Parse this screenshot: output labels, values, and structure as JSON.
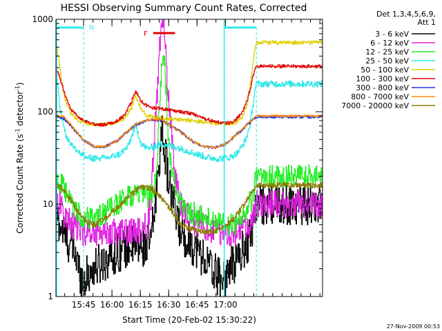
{
  "chart_data": {
    "type": "line",
    "title": "HESSI Observing Summary Count Rates, Corrected",
    "xlabel": "Start Time (20-Feb-02 15:30:22)",
    "ylabel_parts": [
      "Corrected Count Rate (s",
      "-1",
      " detector",
      "-1",
      ")"
    ],
    "yscale": "log",
    "ylim": [
      1,
      1000
    ],
    "xlim_min": [
      0,
      141
    ],
    "x_units": "minutes after 15:30:22",
    "x_ticks": [
      {
        "minute": 14.63,
        "label": "15:45"
      },
      {
        "minute": 29.63,
        "label": "16:00"
      },
      {
        "minute": 44.63,
        "label": "16:15"
      },
      {
        "minute": 59.63,
        "label": "16:30"
      },
      {
        "minute": 74.63,
        "label": "16:45"
      },
      {
        "minute": 89.63,
        "label": "17:00"
      }
    ],
    "y_ticks": [
      {
        "value": 1,
        "label": "1"
      },
      {
        "value": 10,
        "label": "10"
      },
      {
        "value": 100,
        "label": "100"
      },
      {
        "value": 1000,
        "label": "1000"
      }
    ],
    "legend_header": [
      "Det 1,3,4,5,6,9,",
      "Att 1"
    ],
    "legend_position": "right",
    "series": [
      {
        "name": "3 - 6 keV",
        "color": "#000000",
        "noise": 0.45,
        "points": [
          [
            0,
            8
          ],
          [
            2,
            6
          ],
          [
            6,
            4
          ],
          [
            10,
            3
          ],
          [
            12,
            2
          ],
          [
            14,
            1.5
          ],
          [
            20,
            2
          ],
          [
            26,
            2.5
          ],
          [
            32,
            3
          ],
          [
            38,
            3.5
          ],
          [
            46,
            3.5
          ],
          [
            50,
            4
          ],
          [
            52,
            8
          ],
          [
            54,
            25
          ],
          [
            55,
            40
          ],
          [
            56,
            55
          ],
          [
            57,
            50
          ],
          [
            58,
            30
          ],
          [
            60,
            15
          ],
          [
            63,
            8
          ],
          [
            66,
            5
          ],
          [
            70,
            4
          ],
          [
            76,
            3
          ],
          [
            82,
            2
          ],
          [
            88,
            1.5
          ],
          [
            92,
            2
          ],
          [
            98,
            3
          ],
          [
            102,
            4
          ],
          [
            104,
            6
          ],
          [
            105,
            8
          ],
          [
            106,
            10
          ]
        ]
      },
      {
        "name": "6 - 12 keV",
        "color": "#e020e0",
        "noise": 0.3,
        "points": [
          [
            0,
            12
          ],
          [
            2,
            10
          ],
          [
            4,
            8
          ],
          [
            8,
            6
          ],
          [
            14,
            5
          ],
          [
            20,
            5
          ],
          [
            28,
            5
          ],
          [
            38,
            5
          ],
          [
            44,
            5
          ],
          [
            48,
            6
          ],
          [
            50,
            10
          ],
          [
            52,
            50
          ],
          [
            54,
            250
          ],
          [
            55,
            600
          ],
          [
            56,
            800
          ],
          [
            57,
            750
          ],
          [
            58,
            400
          ],
          [
            59,
            200
          ],
          [
            61,
            60
          ],
          [
            63,
            20
          ],
          [
            66,
            10
          ],
          [
            70,
            7
          ],
          [
            76,
            6
          ],
          [
            84,
            5
          ],
          [
            90,
            5
          ],
          [
            96,
            5
          ],
          [
            102,
            6
          ],
          [
            104,
            7
          ],
          [
            105,
            8
          ],
          [
            106,
            10
          ]
        ]
      },
      {
        "name": "12 - 25 keV",
        "color": "#20ee20",
        "noise": 0.25,
        "points": [
          [
            0,
            18
          ],
          [
            3,
            16
          ],
          [
            8,
            10
          ],
          [
            14,
            7
          ],
          [
            20,
            7
          ],
          [
            26,
            8
          ],
          [
            32,
            10
          ],
          [
            38,
            12
          ],
          [
            42,
            13
          ],
          [
            46,
            12
          ],
          [
            50,
            12
          ],
          [
            52,
            15
          ],
          [
            53,
            20
          ],
          [
            54,
            60
          ],
          [
            55,
            150
          ],
          [
            56,
            350
          ],
          [
            57,
            420
          ],
          [
            58,
            200
          ],
          [
            59,
            60
          ],
          [
            61,
            25
          ],
          [
            63,
            15
          ],
          [
            66,
            10
          ],
          [
            72,
            8
          ],
          [
            80,
            7
          ],
          [
            88,
            6
          ],
          [
            94,
            6
          ],
          [
            100,
            8
          ],
          [
            104,
            12
          ],
          [
            106,
            20
          ]
        ]
      },
      {
        "name": "25 - 50 keV",
        "color": "#30e8e8",
        "noise": 0.07,
        "points": [
          [
            0,
            250
          ],
          [
            1,
            180
          ],
          [
            2,
            110
          ],
          [
            4,
            70
          ],
          [
            6,
            50
          ],
          [
            10,
            40
          ],
          [
            16,
            32
          ],
          [
            22,
            31
          ],
          [
            28,
            32
          ],
          [
            34,
            35
          ],
          [
            38,
            42
          ],
          [
            41,
            62
          ],
          [
            42,
            70
          ],
          [
            43,
            62
          ],
          [
            45,
            45
          ],
          [
            48,
            40
          ],
          [
            52,
            42
          ],
          [
            56,
            45
          ],
          [
            60,
            43
          ],
          [
            66,
            40
          ],
          [
            74,
            35
          ],
          [
            80,
            32
          ],
          [
            86,
            31
          ],
          [
            92,
            32
          ],
          [
            96,
            36
          ],
          [
            100,
            48
          ],
          [
            102,
            65
          ],
          [
            104,
            110
          ],
          [
            105,
            170
          ],
          [
            106,
            200
          ]
        ]
      },
      {
        "name": "50 - 100 keV",
        "color": "#e0d000",
        "noise": 0.04,
        "points": [
          [
            0,
            520
          ],
          [
            1,
            430
          ],
          [
            2,
            300
          ],
          [
            3,
            200
          ],
          [
            5,
            130
          ],
          [
            8,
            95
          ],
          [
            12,
            80
          ],
          [
            18,
            72
          ],
          [
            24,
            72
          ],
          [
            30,
            75
          ],
          [
            36,
            85
          ],
          [
            40,
            110
          ],
          [
            41,
            135
          ],
          [
            42,
            150
          ],
          [
            43,
            135
          ],
          [
            45,
            105
          ],
          [
            48,
            90
          ],
          [
            52,
            88
          ],
          [
            56,
            85
          ],
          [
            60,
            83
          ],
          [
            66,
            82
          ],
          [
            72,
            80
          ],
          [
            80,
            76
          ],
          [
            88,
            74
          ],
          [
            94,
            75
          ],
          [
            98,
            85
          ],
          [
            101,
            120
          ],
          [
            103,
            220
          ],
          [
            104,
            330
          ],
          [
            105,
            470
          ],
          [
            106,
            560
          ]
        ]
      },
      {
        "name": "100 - 300 keV",
        "color": "#e00000",
        "noise": 0.035,
        "points": [
          [
            0,
            270
          ],
          [
            1,
            260
          ],
          [
            2,
            230
          ],
          [
            4,
            170
          ],
          [
            6,
            130
          ],
          [
            8,
            105
          ],
          [
            12,
            85
          ],
          [
            18,
            75
          ],
          [
            24,
            72
          ],
          [
            30,
            75
          ],
          [
            36,
            90
          ],
          [
            40,
            130
          ],
          [
            41,
            155
          ],
          [
            42,
            165
          ],
          [
            43,
            155
          ],
          [
            45,
            130
          ],
          [
            48,
            115
          ],
          [
            52,
            110
          ],
          [
            56,
            108
          ],
          [
            60,
            105
          ],
          [
            66,
            100
          ],
          [
            72,
            95
          ],
          [
            78,
            85
          ],
          [
            84,
            78
          ],
          [
            90,
            75
          ],
          [
            94,
            78
          ],
          [
            98,
            95
          ],
          [
            101,
            130
          ],
          [
            103,
            190
          ],
          [
            104,
            240
          ],
          [
            105,
            280
          ],
          [
            106,
            310
          ]
        ]
      },
      {
        "name": "300 - 800 keV",
        "color": "#2030e0",
        "noise": 0.03,
        "points": [
          [
            0,
            88
          ],
          [
            4,
            85
          ],
          [
            8,
            70
          ],
          [
            14,
            50
          ],
          [
            20,
            42
          ],
          [
            26,
            42
          ],
          [
            32,
            48
          ],
          [
            38,
            62
          ],
          [
            42,
            72
          ],
          [
            48,
            80
          ],
          [
            52,
            82
          ],
          [
            56,
            80
          ],
          [
            60,
            72
          ],
          [
            66,
            60
          ],
          [
            72,
            48
          ],
          [
            78,
            42
          ],
          [
            84,
            41
          ],
          [
            90,
            45
          ],
          [
            96,
            58
          ],
          [
            102,
            75
          ],
          [
            106,
            88
          ]
        ]
      },
      {
        "name": "800 - 7000 keV",
        "color": "#ff8800",
        "noise": 0.02,
        "points": [
          [
            0,
            92
          ],
          [
            4,
            88
          ],
          [
            8,
            72
          ],
          [
            14,
            50
          ],
          [
            20,
            42
          ],
          [
            26,
            42
          ],
          [
            32,
            48
          ],
          [
            38,
            62
          ],
          [
            42,
            73
          ],
          [
            48,
            81
          ],
          [
            52,
            83
          ],
          [
            56,
            81
          ],
          [
            60,
            72
          ],
          [
            66,
            60
          ],
          [
            72,
            48
          ],
          [
            78,
            42
          ],
          [
            84,
            41
          ],
          [
            90,
            45
          ],
          [
            96,
            58
          ],
          [
            102,
            76
          ],
          [
            106,
            90
          ]
        ]
      },
      {
        "name": "7000 - 20000 keV",
        "color": "#8a7a00",
        "noise": 0.06,
        "points": [
          [
            0,
            16
          ],
          [
            3,
            15
          ],
          [
            8,
            11
          ],
          [
            12,
            8
          ],
          [
            16,
            6.5
          ],
          [
            20,
            6
          ],
          [
            26,
            7
          ],
          [
            32,
            9
          ],
          [
            38,
            12
          ],
          [
            44,
            15
          ],
          [
            50,
            15
          ],
          [
            54,
            13
          ],
          [
            58,
            10
          ],
          [
            62,
            8
          ],
          [
            66,
            6
          ],
          [
            70,
            5.5
          ],
          [
            76,
            5
          ],
          [
            84,
            5
          ],
          [
            88,
            5.5
          ],
          [
            94,
            7
          ],
          [
            98,
            9
          ],
          [
            102,
            12
          ],
          [
            106,
            16
          ]
        ]
      }
    ],
    "annotations": {
      "night_label": "N",
      "flare_label": "F",
      "night_bars_min": [
        [
          0,
          14.7
        ],
        [
          89,
          106
        ]
      ],
      "flare_bar_min": [
        51.5,
        63
      ],
      "dashed_lines_min": [
        14.7,
        89,
        106
      ]
    }
  },
  "timestamp": "27-Nov-2009 00:53"
}
